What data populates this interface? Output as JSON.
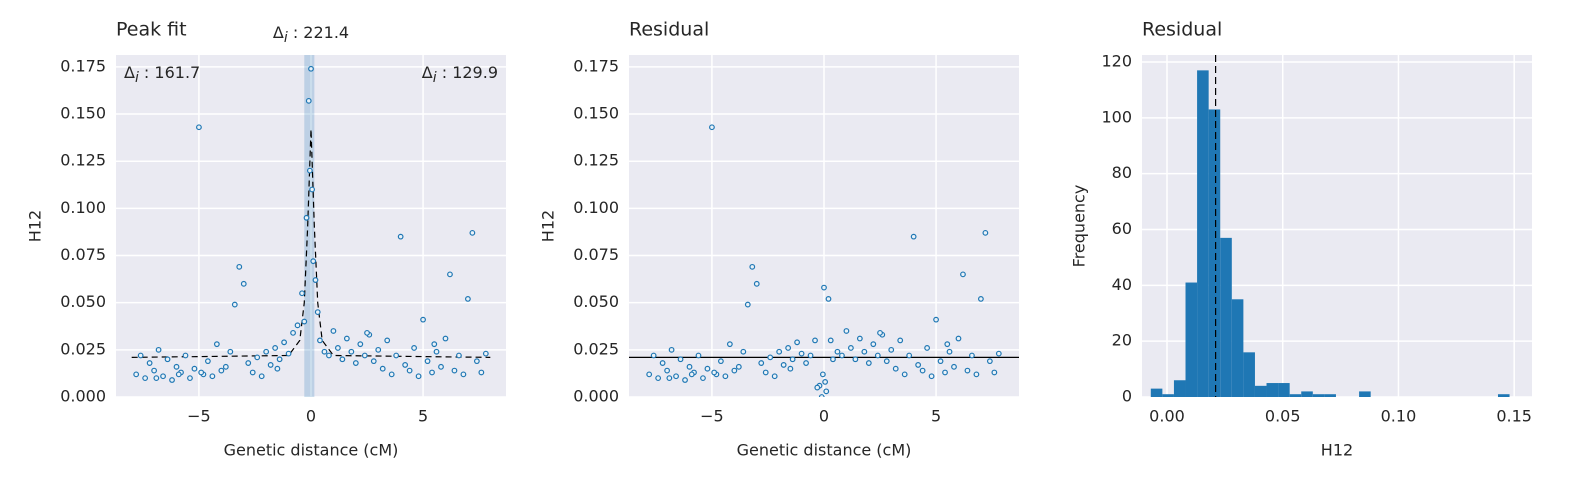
{
  "chart_data": [
    {
      "type": "scatter",
      "title": "Peak fit",
      "xlabel": "Genetic distance (cM)",
      "ylabel": "H12",
      "color": "#1f77b4",
      "xlim": [
        -8.7,
        8.7
      ],
      "ylim": [
        0,
        0.1813
      ],
      "xticks": [
        {
          "value": -5,
          "label": "−5"
        },
        0,
        5
      ],
      "yticks": [
        {
          "value": 0,
          "label": "0.000"
        },
        {
          "value": 0.025,
          "label": "0.025"
        },
        {
          "value": 0.05,
          "label": "0.050"
        },
        {
          "value": 0.075,
          "label": "0.075"
        },
        {
          "value": 0.1,
          "label": "0.100"
        },
        {
          "value": 0.125,
          "label": "0.125"
        },
        {
          "value": 0.15,
          "label": "0.150"
        },
        {
          "value": 0.175,
          "label": "0.175"
        }
      ],
      "grid": true,
      "span": [
        -0.3,
        0.15
      ],
      "x": [
        -7.8,
        -7.6,
        -7.4,
        -7.2,
        -7.0,
        -6.8,
        -6.6,
        -6.4,
        -6.2,
        -6.0,
        -5.8,
        -5.6,
        -5.4,
        -5.2,
        -5.0,
        -4.8,
        -4.6,
        -4.4,
        -4.2,
        -4.0,
        -3.8,
        -3.6,
        -3.4,
        -3.2,
        -3.0,
        -2.8,
        -2.6,
        -2.4,
        -2.2,
        -2.0,
        -1.8,
        -1.6,
        -1.4,
        -1.2,
        -1.0,
        -0.8,
        -0.6,
        -0.4,
        -0.2,
        0.0,
        0.2,
        0.4,
        0.6,
        0.8,
        1.0,
        1.2,
        1.4,
        1.6,
        1.8,
        2.0,
        2.2,
        2.4,
        2.6,
        2.8,
        3.0,
        3.2,
        3.4,
        3.6,
        3.8,
        4.0,
        4.2,
        4.4,
        4.6,
        4.8,
        5.0,
        5.2,
        5.4,
        5.6,
        5.8,
        6.0,
        6.2,
        6.4,
        6.6,
        6.8,
        7.0,
        7.2,
        7.4,
        7.6,
        7.8,
        -0.1,
        -0.05,
        0.05,
        0.1,
        -0.3,
        0.3,
        -6.9,
        -5.9,
        -4.9,
        2.5,
        5.5,
        -1.5
      ],
      "values": [
        0.012,
        0.022,
        0.01,
        0.018,
        0.014,
        0.025,
        0.011,
        0.02,
        0.009,
        0.016,
        0.013,
        0.022,
        0.01,
        0.015,
        0.143,
        0.012,
        0.019,
        0.011,
        0.028,
        0.014,
        0.016,
        0.024,
        0.049,
        0.069,
        0.06,
        0.018,
        0.013,
        0.021,
        0.011,
        0.024,
        0.017,
        0.026,
        0.02,
        0.029,
        0.023,
        0.034,
        0.038,
        0.055,
        0.095,
        0.174,
        0.062,
        0.03,
        0.024,
        0.022,
        0.035,
        0.026,
        0.02,
        0.031,
        0.024,
        0.018,
        0.028,
        0.022,
        0.033,
        0.019,
        0.025,
        0.015,
        0.03,
        0.012,
        0.022,
        0.085,
        0.017,
        0.014,
        0.026,
        0.011,
        0.041,
        0.019,
        0.013,
        0.024,
        0.016,
        0.031,
        0.065,
        0.014,
        0.022,
        0.012,
        0.052,
        0.087,
        0.019,
        0.013,
        0.023,
        0.157,
        0.12,
        0.11,
        0.072,
        0.04,
        0.045,
        0.01,
        0.012,
        0.013,
        0.034,
        0.028,
        0.015
      ],
      "fit": {
        "color": "#000000",
        "x": [
          -8,
          -1,
          -0.5,
          -0.3,
          -0.15,
          0,
          0.15,
          0.3,
          0.5,
          1,
          8
        ],
        "values": [
          0.021,
          0.022,
          0.03,
          0.05,
          0.09,
          0.142,
          0.09,
          0.05,
          0.03,
          0.022,
          0.021
        ]
      },
      "annotations": [
        {
          "loc": "upper left",
          "symbol": "Δ",
          "subscript": "i",
          "separator": " : ",
          "value": 161.7
        },
        {
          "loc": "top",
          "symbol": "Δ",
          "subscript": "i",
          "separator": " : ",
          "value": 221.4
        },
        {
          "loc": "upper right",
          "symbol": "Δ",
          "subscript": "i",
          "separator": " : ",
          "value": 129.9
        }
      ]
    },
    {
      "type": "scatter",
      "title": "Residual",
      "xlabel": "Genetic distance (cM)",
      "ylabel": "H12",
      "color": "#1f77b4",
      "xlim": [
        -8.7,
        8.7
      ],
      "ylim": [
        0,
        0.1813
      ],
      "xticks": [
        {
          "value": -5,
          "label": "−5"
        },
        0,
        5
      ],
      "yticks": [
        {
          "value": 0,
          "label": "0.000"
        },
        {
          "value": 0.025,
          "label": "0.025"
        },
        {
          "value": 0.05,
          "label": "0.050"
        },
        {
          "value": 0.075,
          "label": "0.075"
        },
        {
          "value": 0.1,
          "label": "0.100"
        },
        {
          "value": 0.125,
          "label": "0.125"
        },
        {
          "value": 0.15,
          "label": "0.150"
        },
        {
          "value": 0.175,
          "label": "0.175"
        }
      ],
      "grid": true,
      "x": [
        -7.8,
        -7.6,
        -7.4,
        -7.2,
        -7.0,
        -6.8,
        -6.6,
        -6.4,
        -6.2,
        -6.0,
        -5.8,
        -5.6,
        -5.4,
        -5.2,
        -5.0,
        -4.8,
        -4.6,
        -4.4,
        -4.2,
        -4.0,
        -3.8,
        -3.6,
        -3.4,
        -3.2,
        -3.0,
        -2.8,
        -2.6,
        -2.4,
        -2.2,
        -2.0,
        -1.8,
        -1.6,
        -1.4,
        -1.2,
        -1.0,
        -0.8,
        -0.6,
        -0.4,
        -0.2,
        0.0,
        0.2,
        0.4,
        0.6,
        0.8,
        1.0,
        1.2,
        1.4,
        1.6,
        1.8,
        2.0,
        2.2,
        2.4,
        2.6,
        2.8,
        3.0,
        3.2,
        3.4,
        3.6,
        3.8,
        4.0,
        4.2,
        4.4,
        4.6,
        4.8,
        5.0,
        5.2,
        5.4,
        5.6,
        5.8,
        6.0,
        6.2,
        6.4,
        6.6,
        6.8,
        7.0,
        7.2,
        7.4,
        7.6,
        7.8,
        -0.1,
        -0.05,
        0.05,
        0.1,
        -0.3,
        0.3,
        -6.9,
        -5.9,
        -4.9,
        2.5,
        5.5,
        -1.5
      ],
      "values": [
        0.012,
        0.022,
        0.01,
        0.018,
        0.014,
        0.025,
        0.011,
        0.02,
        0.009,
        0.016,
        0.013,
        0.022,
        0.01,
        0.015,
        0.143,
        0.012,
        0.019,
        0.011,
        0.028,
        0.014,
        0.016,
        0.024,
        0.049,
        0.069,
        0.06,
        0.018,
        0.013,
        0.021,
        0.011,
        0.024,
        0.017,
        0.026,
        0.02,
        0.029,
        0.023,
        0.018,
        0.022,
        0.03,
        0.006,
        0.058,
        0.052,
        0.02,
        0.024,
        0.022,
        0.035,
        0.026,
        0.02,
        0.031,
        0.024,
        0.018,
        0.028,
        0.022,
        0.033,
        0.019,
        0.025,
        0.015,
        0.03,
        0.012,
        0.022,
        0.085,
        0.017,
        0.014,
        0.026,
        0.011,
        0.041,
        0.019,
        0.013,
        0.024,
        0.016,
        0.031,
        0.065,
        0.014,
        0.022,
        0.012,
        0.052,
        0.087,
        0.019,
        0.013,
        0.023,
        0.0,
        0.012,
        0.008,
        0.003,
        0.005,
        0.03,
        0.01,
        0.012,
        0.013,
        0.034,
        0.028,
        0.015
      ],
      "fit": {
        "color": "#000000",
        "x": [
          -8.7,
          8.7
        ],
        "values": [
          0.021,
          0.021
        ]
      }
    },
    {
      "type": "histogram",
      "title": "Residual",
      "xlabel": "H12",
      "ylabel": "Frequency",
      "color": "#1f77b4",
      "xlim": [
        -0.0108,
        0.1577
      ],
      "ylim": [
        0,
        122.5
      ],
      "xticks": [
        {
          "value": 0,
          "label": "0.00"
        },
        {
          "value": 0.05,
          "label": "0.05"
        },
        {
          "value": 0.1,
          "label": "0.10"
        },
        {
          "value": 0.15,
          "label": "0.15"
        }
      ],
      "yticks": [
        0,
        20,
        40,
        60,
        80,
        100,
        120
      ],
      "grid": true,
      "bins": [
        -0.007,
        -0.002,
        0.003,
        0.008,
        0.013,
        0.018,
        0.023,
        0.028,
        0.033,
        0.038,
        0.043,
        0.048,
        0.053,
        0.058,
        0.063,
        0.068,
        0.073,
        0.078,
        0.083,
        0.088,
        0.093,
        0.098,
        0.103,
        0.108,
        0.113,
        0.118,
        0.123,
        0.128,
        0.133,
        0.138,
        0.143,
        0.148
      ],
      "values": [
        3,
        1,
        6,
        41,
        117,
        103,
        57,
        35,
        16,
        4,
        5,
        5,
        1,
        2,
        1,
        1,
        0,
        0,
        2,
        0,
        0,
        0,
        0,
        0,
        0,
        0,
        0,
        0,
        0,
        0,
        1
      ],
      "vline": 0.021
    }
  ]
}
